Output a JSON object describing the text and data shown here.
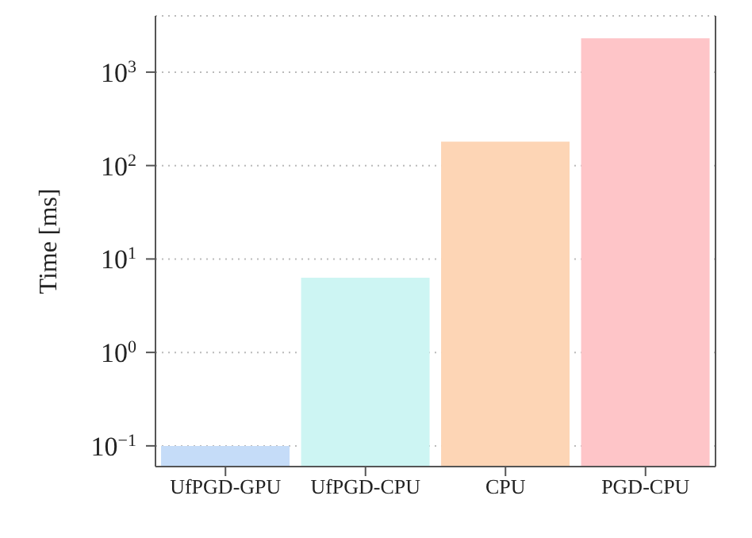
{
  "chart_data": {
    "type": "bar",
    "ylabel": "Time [ms]",
    "categories": [
      "UfPGD-GPU",
      "UfPGD-CPU",
      "CPU",
      "PGD-CPU"
    ],
    "values": [
      0.1,
      6.3,
      180,
      2300
    ],
    "colors": [
      "#c5dcf8",
      "#cdf5f3",
      "#fdd5b5",
      "#fec5c8"
    ],
    "log": true,
    "ylim": [
      0.06,
      4000
    ],
    "yticks": [
      {
        "value": 0.1,
        "label": "10$^{−1}$"
      },
      {
        "value": 1,
        "label": "10$^{0}$"
      },
      {
        "value": 10,
        "label": "10$^{1}$"
      },
      {
        "value": 100,
        "label": "10$^{2}$"
      },
      {
        "value": 1000,
        "label": "10$^{3}$"
      }
    ],
    "grid": "y"
  }
}
